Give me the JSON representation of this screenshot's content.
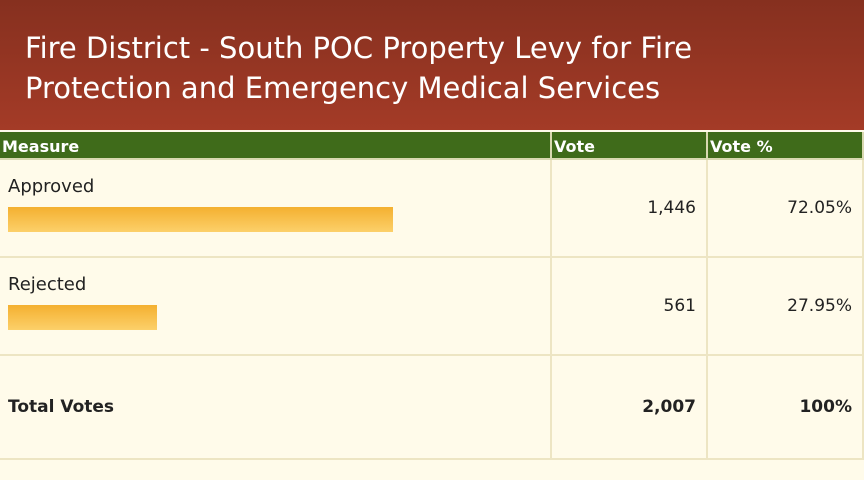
{
  "header": {
    "title": "Fire District - South POC Property Levy for Fire Protection and Emergency Medical Services"
  },
  "table": {
    "columns": [
      "Measure",
      "Vote",
      "Vote %"
    ],
    "rows": [
      {
        "label": "Approved",
        "vote": "1,446",
        "percent": {
          "value": 72.05,
          "label": "72.05%"
        }
      },
      {
        "label": "Rejected",
        "vote": "561",
        "percent": {
          "value": 27.95,
          "label": "27.95%"
        }
      }
    ],
    "total": {
      "label": "Total Votes",
      "vote": "2,007",
      "percent": "100%"
    }
  }
}
